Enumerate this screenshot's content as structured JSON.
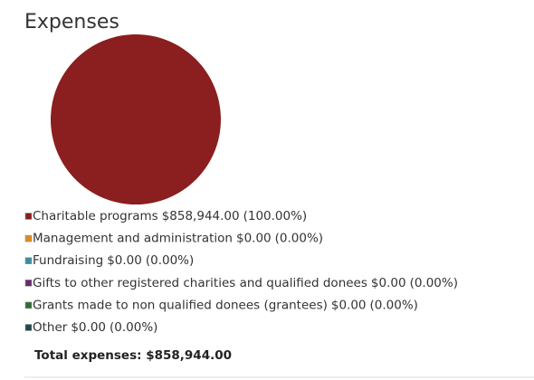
{
  "chart_data": {
    "type": "pie",
    "title": "Expenses",
    "categories": [
      "Charitable programs",
      "Management and administration",
      "Fundraising",
      "Gifts to other registered charities and qualified donees",
      "Grants made to non qualified donees (grantees)",
      "Other"
    ],
    "values": [
      858944,
      0,
      0,
      0,
      0,
      0
    ],
    "value_labels": [
      "$858,944.00",
      "$0.00",
      "$0.00",
      "$0.00",
      "$0.00",
      "$0.00"
    ],
    "percent_labels": [
      "(100.00%)",
      "(0.00%)",
      "(0.00%)",
      "(0.00%)",
      "(0.00%)",
      "(0.00%)"
    ],
    "colors": [
      "#8b1e1f",
      "#e0891c",
      "#3a8e9c",
      "#6a2a68",
      "#2f6b36",
      "#1f4a4f"
    ],
    "total_text": "Total expenses: $858,944.00"
  }
}
